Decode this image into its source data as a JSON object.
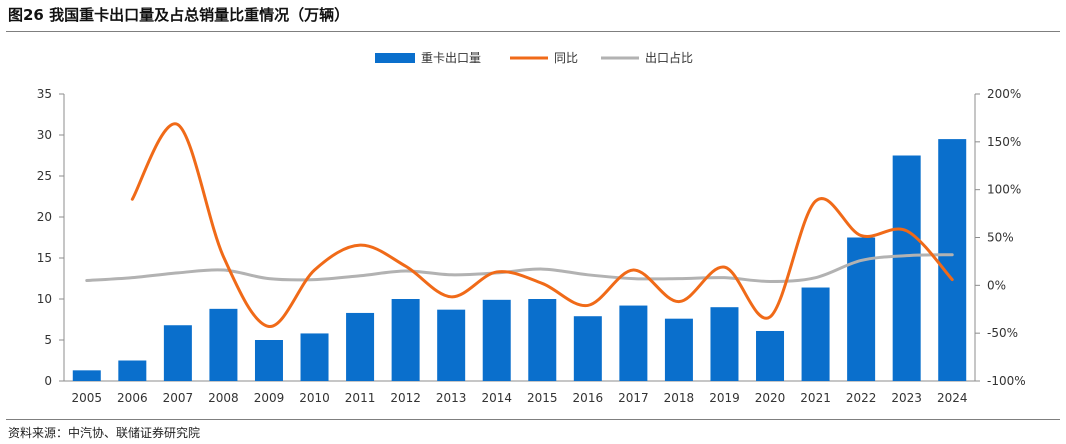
{
  "title": "图26 我国重卡出口量及占总销量比重情况（万辆）",
  "source": "资料来源：中汽协、联储证券研究院",
  "colors": {
    "bar": "#0A6FCC",
    "line_yoy": "#F06A18",
    "line_share": "#B2B2B2",
    "axis": "#8C8C8C",
    "text": "#333333"
  },
  "chart_data": {
    "type": "bar",
    "categories": [
      "2005",
      "2006",
      "2007",
      "2008",
      "2009",
      "2010",
      "2011",
      "2012",
      "2013",
      "2014",
      "2015",
      "2016",
      "2017",
      "2018",
      "2019",
      "2020",
      "2021",
      "2022",
      "2023",
      "2024"
    ],
    "series": [
      {
        "name": "重卡出口量",
        "kind": "bar",
        "axis": "left",
        "values": [
          1.3,
          2.5,
          6.8,
          8.8,
          5.0,
          5.8,
          8.3,
          10.0,
          8.7,
          9.9,
          10.0,
          7.9,
          9.2,
          7.6,
          9.0,
          6.1,
          11.4,
          17.5,
          27.5,
          29.5
        ]
      },
      {
        "name": "同比",
        "kind": "line",
        "axis": "right",
        "values": [
          null,
          90,
          168,
          30,
          -43,
          16,
          42,
          20,
          -12,
          14,
          2,
          -21,
          16,
          -17,
          19,
          -33,
          88,
          52,
          57,
          6
        ]
      },
      {
        "name": "出口占比",
        "kind": "line",
        "axis": "right",
        "values": [
          5,
          8,
          13,
          16,
          7,
          6,
          10,
          15,
          11,
          13,
          17,
          11,
          7,
          7,
          8,
          4,
          8,
          26,
          31,
          32
        ]
      }
    ],
    "y_left": {
      "min": 0,
      "max": 35,
      "ticks": [
        "0",
        "5",
        "10",
        "15",
        "20",
        "25",
        "30",
        "35"
      ]
    },
    "y_right": {
      "min": -100,
      "max": 200,
      "ticks": [
        "-100%",
        "-50%",
        "0%",
        "50%",
        "100%",
        "150%",
        "200%"
      ]
    },
    "legend_position": "top-center"
  }
}
